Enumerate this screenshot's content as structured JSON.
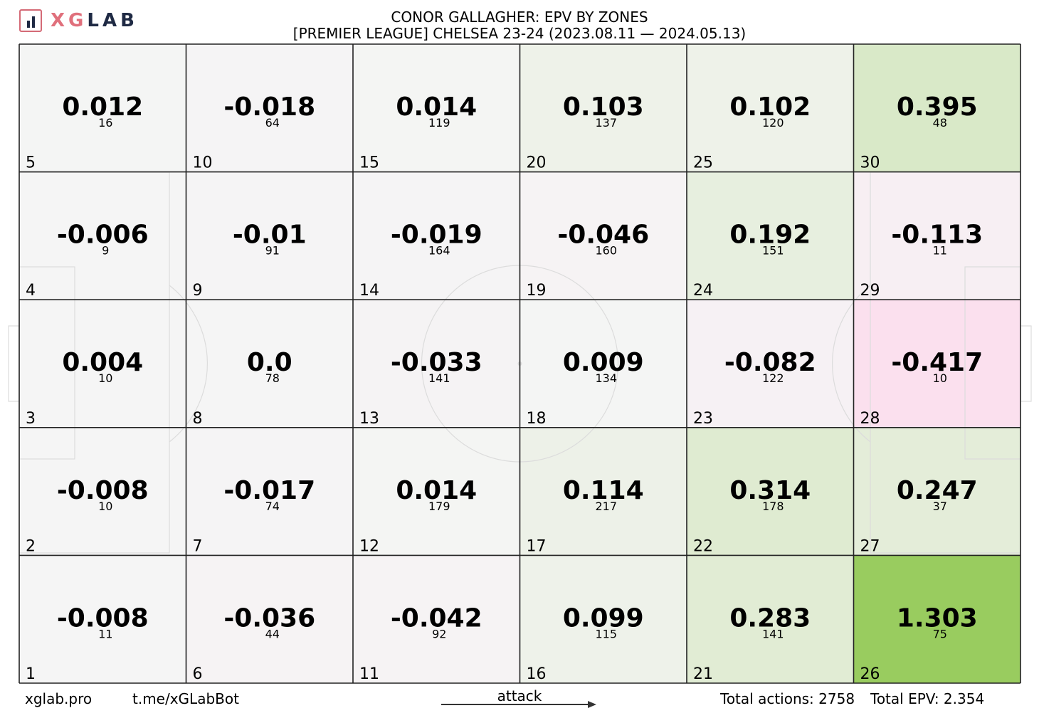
{
  "logo": {
    "xg": "XG",
    "lab": "LAB"
  },
  "title": "CONOR GALLAGHER: EPV BY ZONES",
  "subtitle": "[PREMIER LEAGUE] CHELSEA 23-24 (2023.08.11 — 2024.05.13)",
  "footer": {
    "site": "xglab.pro",
    "bot": "t.me/xGLabBot",
    "attack_label": "attack",
    "total_actions": "Total actions: 2758",
    "total_epv": "Total EPV: 2.354"
  },
  "colors": {
    "neutral": "#f5f5f5",
    "positive": "#99cc5f",
    "negative": "#fbe0ee",
    "grid": "#222222",
    "pitch_lines": "#dcdcdc"
  },
  "chart_data": {
    "type": "heatmap",
    "title": "CONOR GALLAGHER: EPV BY ZONES",
    "subtitle": "[PREMIER LEAGUE] CHELSEA 23-24 (2023.08.11 — 2024.05.13)",
    "columns": 6,
    "rows": 5,
    "zones": [
      {
        "zone": 1,
        "epv": "-0.008",
        "actions": "11"
      },
      {
        "zone": 2,
        "epv": "-0.008",
        "actions": "10"
      },
      {
        "zone": 3,
        "epv": "0.004",
        "actions": "10"
      },
      {
        "zone": 4,
        "epv": "-0.006",
        "actions": "9"
      },
      {
        "zone": 5,
        "epv": "0.012",
        "actions": "16"
      },
      {
        "zone": 6,
        "epv": "-0.036",
        "actions": "44"
      },
      {
        "zone": 7,
        "epv": "-0.017",
        "actions": "74"
      },
      {
        "zone": 8,
        "epv": "0.0",
        "actions": "78"
      },
      {
        "zone": 9,
        "epv": "-0.01",
        "actions": "91"
      },
      {
        "zone": 10,
        "epv": "-0.018",
        "actions": "64"
      },
      {
        "zone": 11,
        "epv": "-0.042",
        "actions": "92"
      },
      {
        "zone": 12,
        "epv": "0.014",
        "actions": "179"
      },
      {
        "zone": 13,
        "epv": "-0.033",
        "actions": "141"
      },
      {
        "zone": 14,
        "epv": "-0.019",
        "actions": "164"
      },
      {
        "zone": 15,
        "epv": "0.014",
        "actions": "119"
      },
      {
        "zone": 16,
        "epv": "0.099",
        "actions": "115"
      },
      {
        "zone": 17,
        "epv": "0.114",
        "actions": "217"
      },
      {
        "zone": 18,
        "epv": "0.009",
        "actions": "134"
      },
      {
        "zone": 19,
        "epv": "-0.046",
        "actions": "160"
      },
      {
        "zone": 20,
        "epv": "0.103",
        "actions": "137"
      },
      {
        "zone": 21,
        "epv": "0.283",
        "actions": "141"
      },
      {
        "zone": 22,
        "epv": "0.314",
        "actions": "178"
      },
      {
        "zone": 23,
        "epv": "-0.082",
        "actions": "122"
      },
      {
        "zone": 24,
        "epv": "0.192",
        "actions": "151"
      },
      {
        "zone": 25,
        "epv": "0.102",
        "actions": "120"
      },
      {
        "zone": 26,
        "epv": "1.303",
        "actions": "75"
      },
      {
        "zone": 27,
        "epv": "0.247",
        "actions": "37"
      },
      {
        "zone": 28,
        "epv": "-0.417",
        "actions": "10"
      },
      {
        "zone": 29,
        "epv": "-0.113",
        "actions": "11"
      },
      {
        "zone": 30,
        "epv": "0.395",
        "actions": "48"
      }
    ]
  }
}
